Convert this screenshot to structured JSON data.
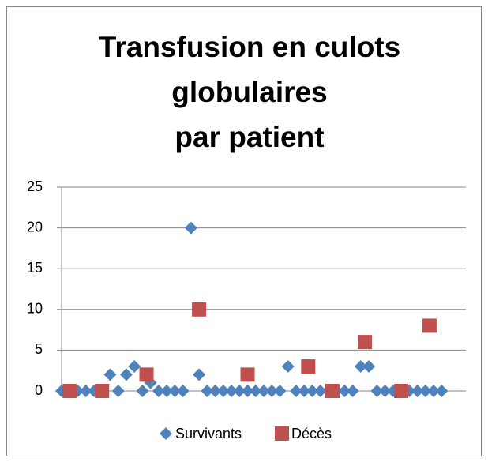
{
  "chart_data": {
    "type": "scatter",
    "title": [
      "Transfusion en culots",
      "globulaires",
      "par patient"
    ],
    "xlim": [
      0,
      50
    ],
    "ylim": [
      0,
      25
    ],
    "yticks": [
      0,
      5,
      10,
      15,
      20,
      25
    ],
    "grid": true,
    "legend": "bottom",
    "series": [
      {
        "name": "Survivants",
        "color": "#4f81bd",
        "marker": "diamond",
        "x": [
          0,
          1,
          2,
          3,
          4,
          5,
          6,
          7,
          8,
          9,
          10,
          11,
          12,
          13,
          14,
          15,
          16,
          17,
          18,
          19,
          20,
          21,
          22,
          23,
          24,
          25,
          26,
          27,
          28,
          29,
          30,
          31,
          32,
          33,
          34,
          35,
          36,
          37,
          38,
          39,
          40,
          41,
          42,
          43,
          44,
          45,
          46,
          47
        ],
        "values": [
          0,
          0,
          0,
          0,
          0,
          0,
          2,
          0,
          2,
          3,
          0,
          1,
          0,
          0,
          0,
          0,
          20,
          2,
          0,
          0,
          0,
          0,
          0,
          0,
          0,
          0,
          0,
          0,
          3,
          0,
          0,
          0,
          0,
          0,
          0,
          0,
          0,
          3,
          3,
          0,
          0,
          0,
          0,
          0,
          0,
          0,
          0,
          0
        ]
      },
      {
        "name": "Décès",
        "color": "#c0504d",
        "marker": "square",
        "x": [
          1,
          5,
          10.5,
          17,
          23,
          30.5,
          33.5,
          37.5,
          42,
          45.5
        ],
        "values": [
          0,
          0,
          2,
          10,
          2,
          3,
          0,
          6,
          0,
          8
        ]
      }
    ]
  }
}
